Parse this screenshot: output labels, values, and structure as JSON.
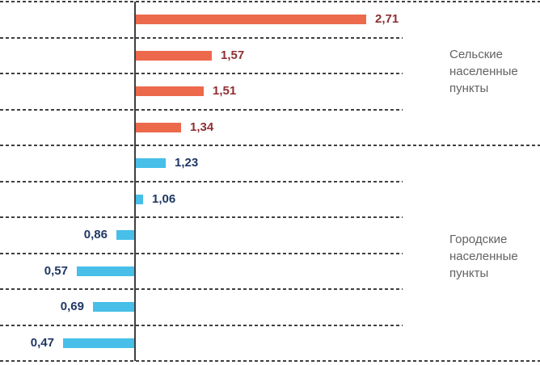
{
  "chart_data": {
    "type": "bar",
    "orientation": "horizontal",
    "baseline": 1,
    "xlim": [
      0,
      4
    ],
    "decimal_separator": ",",
    "legend_position": "right",
    "grid": {
      "style": "dashed",
      "color": "#3F3F3F",
      "separator_count": 11,
      "full_width_rows": [
        0,
        4,
        10
      ]
    },
    "group_label_color": "#636363",
    "groups": [
      {
        "label": "Сельские населенные пункты",
        "bar_color": "#EC694C",
        "value_color": "#8E2F34",
        "items": [
          {
            "value": 2.71,
            "label": "2,71"
          },
          {
            "value": 1.57,
            "label": "1,57"
          },
          {
            "value": 1.51,
            "label": "1,51"
          },
          {
            "value": 1.34,
            "label": "1,34"
          }
        ]
      },
      {
        "label": "Городские населенные пункты",
        "bar_color": "#47BFE8",
        "value_color": "#1F3864",
        "items": [
          {
            "value": 1.23,
            "label": "1,23"
          },
          {
            "value": 1.06,
            "label": "1,06"
          },
          {
            "value": 0.86,
            "label": "0,86"
          },
          {
            "value": 0.57,
            "label": "0,57"
          },
          {
            "value": 0.69,
            "label": "0,69"
          },
          {
            "value": 0.47,
            "label": "0,47"
          }
        ]
      }
    ]
  }
}
